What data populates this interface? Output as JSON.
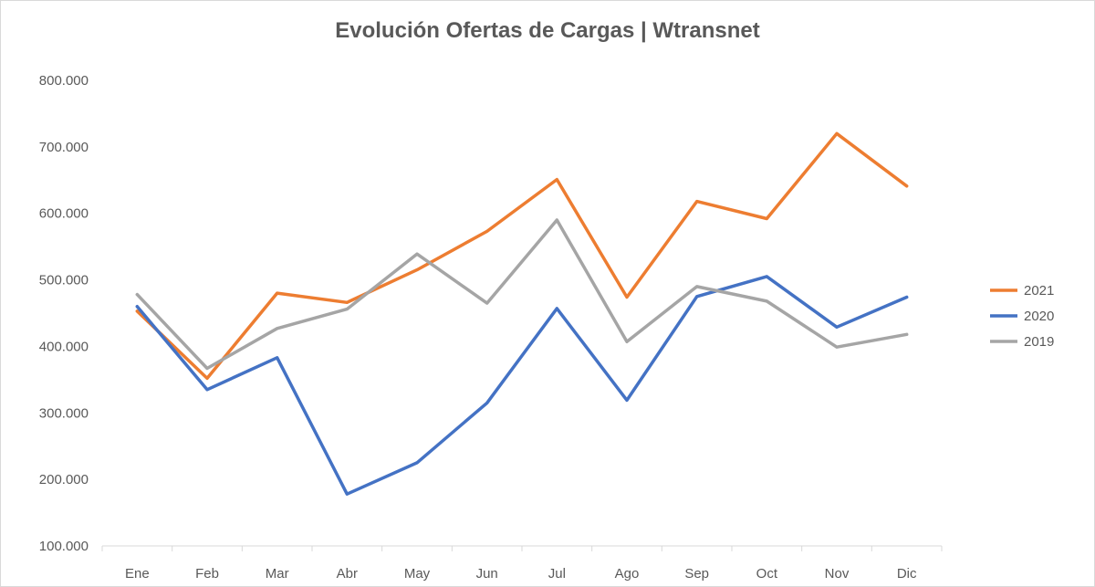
{
  "chart_data": {
    "type": "line",
    "title": "Evolución Ofertas de Cargas | Wtransnet",
    "xlabel": "",
    "ylabel": "",
    "categories": [
      "Ene",
      "Feb",
      "Mar",
      "Abr",
      "May",
      "Jun",
      "Jul",
      "Ago",
      "Sep",
      "Oct",
      "Nov",
      "Dic"
    ],
    "y_ticks": [
      "100.000",
      "200.000",
      "300.000",
      "400.000",
      "500.000",
      "600.000",
      "700.000",
      "800.000"
    ],
    "ylim": [
      100000,
      800000
    ],
    "grid": false,
    "legend_position": "right",
    "series": [
      {
        "name": "2021",
        "color": "#ED7D31",
        "values": [
          453000,
          352000,
          480000,
          466000,
          515000,
          573000,
          651000,
          474000,
          618000,
          592000,
          720000,
          641000
        ]
      },
      {
        "name": "2020",
        "color": "#4472C4",
        "values": [
          460000,
          335000,
          383000,
          178000,
          225000,
          315000,
          457000,
          319000,
          475000,
          505000,
          429000,
          474000
        ]
      },
      {
        "name": "2019",
        "color": "#A5A5A5",
        "values": [
          478000,
          367000,
          427000,
          456000,
          539000,
          465000,
          590000,
          407000,
          490000,
          468000,
          399000,
          418000
        ]
      }
    ]
  }
}
